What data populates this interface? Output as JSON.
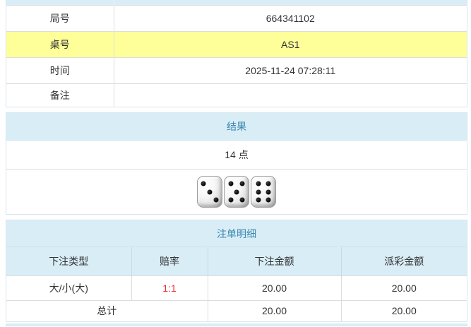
{
  "colors": {
    "panel_header_bg": "#d9edf7",
    "panel_header_text": "#3a87ad",
    "highlight_row_bg": "#ffff99",
    "odds_red": "#e53333",
    "body_text": "#333333"
  },
  "game_info": {
    "rows": [
      {
        "label": "局号",
        "value": "664341102",
        "highlight": false
      },
      {
        "label": "桌号",
        "value": "AS1",
        "highlight": true
      },
      {
        "label": "时间",
        "value": "2025-11-24 07:28:11",
        "highlight": false
      },
      {
        "label": "备注",
        "value": "",
        "highlight": false
      }
    ]
  },
  "result": {
    "title": "结果",
    "points_text": "14 点",
    "dice": [
      3,
      5,
      6
    ]
  },
  "bet_details": {
    "title": "注单明细",
    "columns": [
      "下注类型",
      "赔率",
      "下注金额",
      "派彩金额"
    ],
    "rows": [
      {
        "bet_type": "大/小(大)",
        "odds": "1:1",
        "bet_amount": "20.00",
        "payout_amount": "20.00"
      }
    ],
    "total": {
      "label": "总计",
      "bet_amount": "20.00",
      "payout_amount": "20.00"
    }
  }
}
